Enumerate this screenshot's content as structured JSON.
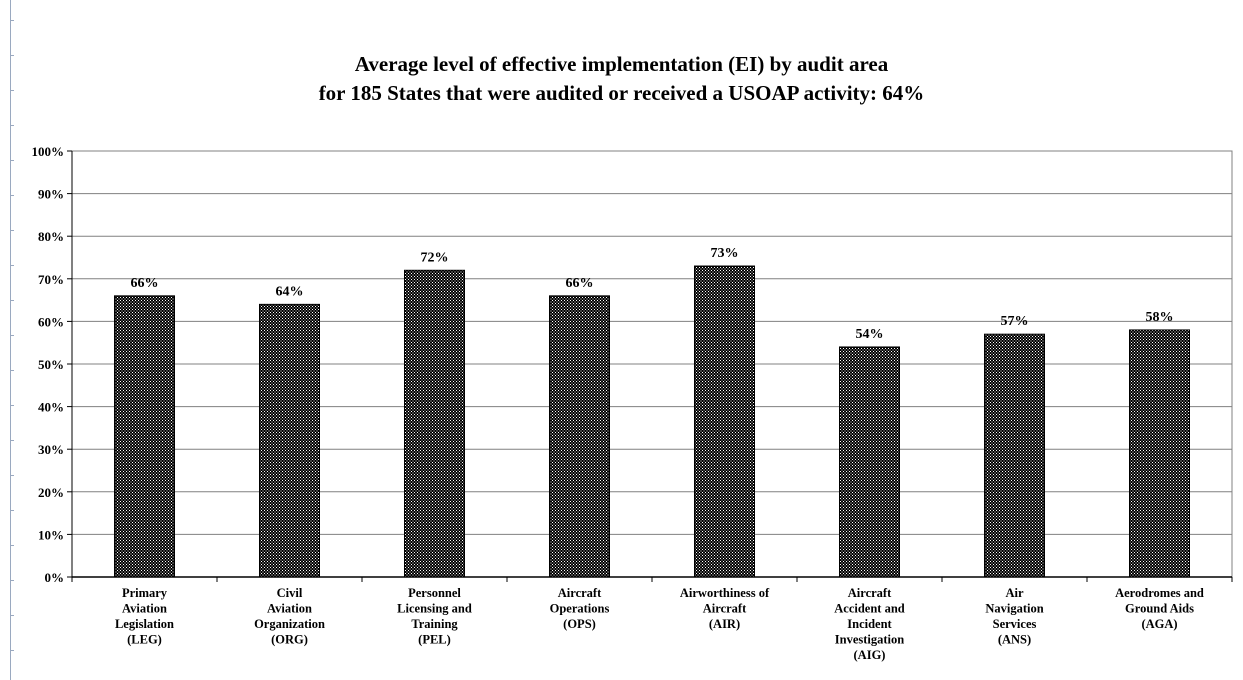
{
  "chart_data": {
    "type": "bar",
    "title": "Average level of effective implementation  (EI) by audit area",
    "subtitle": "for 185 States that were audited  or received a USOAP activity: 64%",
    "categories": [
      [
        "Primary",
        "Aviation",
        "Legislation",
        "(LEG)"
      ],
      [
        "Civil",
        "Aviation",
        "Organization",
        "(ORG)"
      ],
      [
        "Personnel",
        "Licensing and",
        "Training",
        "(PEL)"
      ],
      [
        "Aircraft",
        "Operations",
        "(OPS)"
      ],
      [
        "Airworthiness of",
        "Aircraft",
        "(AIR)"
      ],
      [
        "Aircraft",
        "Accident and",
        "Incident",
        "Investigation",
        "(AIG)"
      ],
      [
        "Air",
        "Navigation",
        "Services",
        "(ANS)"
      ],
      [
        "Aerodromes and",
        "Ground Aids",
        "(AGA)"
      ]
    ],
    "values": [
      66,
      64,
      72,
      66,
      73,
      54,
      57,
      58
    ],
    "data_labels": [
      "66%",
      "64%",
      "72%",
      "66%",
      "73%",
      "54%",
      "57%",
      "58%"
    ],
    "yticks": [
      "0%",
      "10%",
      "20%",
      "30%",
      "40%",
      "50%",
      "60%",
      "70%",
      "80%",
      "90%",
      "100%"
    ],
    "ylim": [
      0,
      100
    ],
    "grid": true,
    "legend": "none",
    "colors": {
      "bar": "#000000",
      "grid": "#808080",
      "axis": "#000000"
    }
  }
}
